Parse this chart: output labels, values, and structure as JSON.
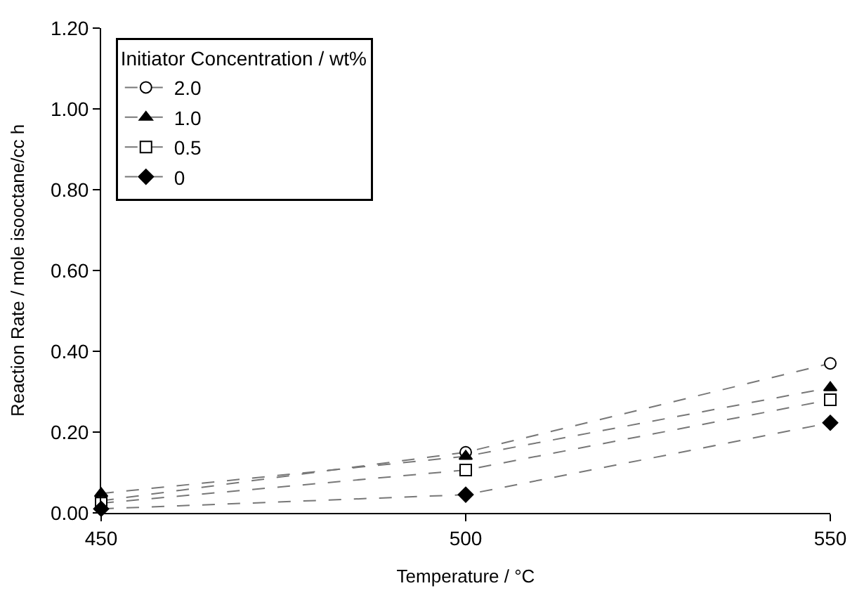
{
  "chart_data": {
    "type": "line",
    "xlabel": "Temperature / °C",
    "ylabel": "Reaction Rate / mole isooctane/cc h",
    "legend_title": "Initiator Concentration / wt%",
    "x": [
      450,
      500,
      550
    ],
    "xlim": [
      450,
      550
    ],
    "xticks": [
      450,
      500,
      550
    ],
    "ylim": [
      0,
      1.2
    ],
    "yticks": [
      {
        "value": 0,
        "label": "0.00"
      },
      {
        "value": 0.2,
        "label": "0.20"
      },
      {
        "value": 0.4,
        "label": "0.40"
      },
      {
        "value": 0.6,
        "label": "0.60"
      },
      {
        "value": 0.8,
        "label": "0.80"
      },
      {
        "value": 1.0,
        "label": "1.00"
      },
      {
        "value": 1.2,
        "label": "1.20"
      }
    ],
    "legend": "top left",
    "line_style": "dashed",
    "series": [
      {
        "name": "2.0",
        "color": "#000000",
        "marker": "circle",
        "values": [
          0.03,
          0.15,
          0.37
        ]
      },
      {
        "name": "1.0",
        "color": "#000000",
        "marker": "triangle",
        "values": [
          0.048,
          0.14,
          0.31
        ]
      },
      {
        "name": "0.5",
        "color": "#000000",
        "marker": "square",
        "values": [
          0.024,
          0.106,
          0.28
        ]
      },
      {
        "name": "0",
        "color": "#000000",
        "marker": "diamond",
        "values": [
          0.01,
          0.045,
          0.223
        ]
      }
    ]
  }
}
